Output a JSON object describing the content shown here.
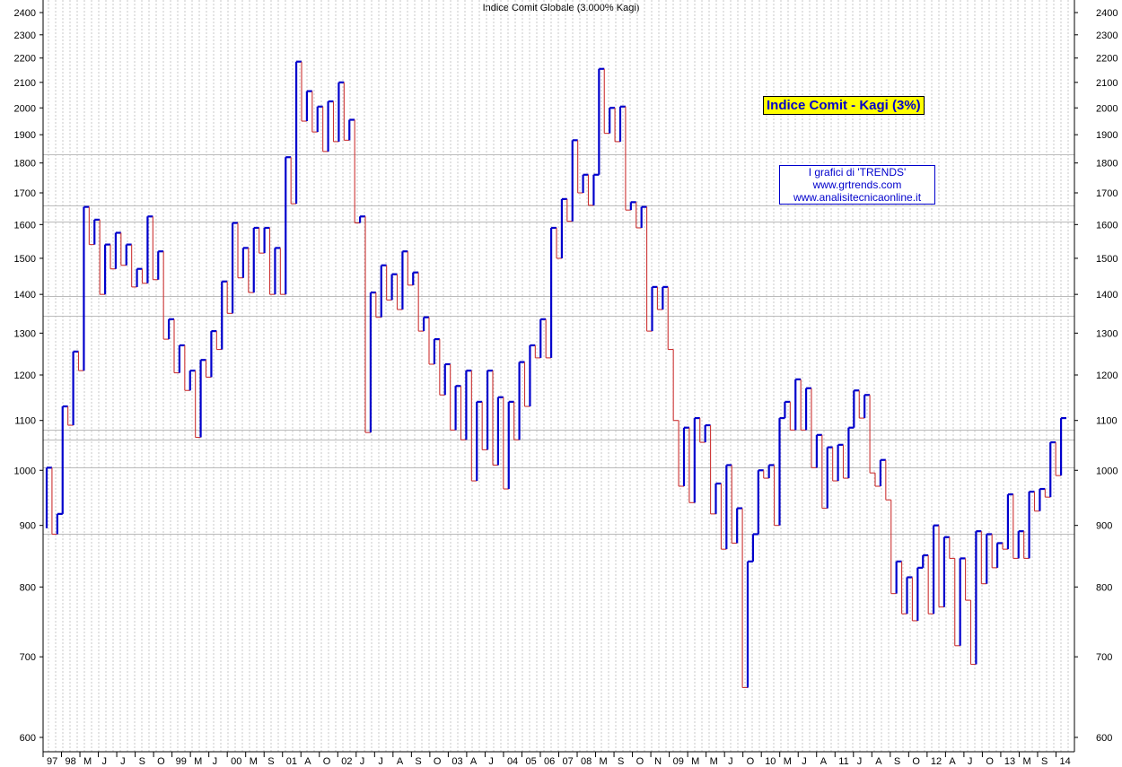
{
  "chart_data": {
    "type": "line",
    "chart_style": "kagi",
    "title": "Indice Comit Globale (3.000% Kagi)",
    "annotation_box": "Indice Comit - Kagi (3%)",
    "credits": [
      "I grafici di 'TRENDS'",
      "www.grtrends.com",
      "www.analisitecnicaonline.it"
    ],
    "y_scale": "log",
    "ylim": [
      580,
      2450
    ],
    "y_ticks": [
      600,
      700,
      800,
      900,
      1000,
      1100,
      1200,
      1300,
      1400,
      1500,
      1600,
      1700,
      1800,
      1900,
      2000,
      2100,
      2200,
      2300,
      2400
    ],
    "y_ticks_labeled_left": [
      600,
      700,
      800,
      900,
      1000,
      1100,
      1200,
      1300,
      1400,
      1500,
      1600,
      1700,
      1800,
      1900,
      2000,
      2100,
      2200,
      2300,
      2400
    ],
    "y_ticks_labeled_right": [
      600,
      700,
      800,
      900,
      1000,
      1100,
      1200,
      1300,
      1400,
      1500,
      1600,
      1700,
      1800,
      1900,
      2000,
      2100,
      2200,
      2300,
      2400
    ],
    "horizontal_lines": [
      885,
      1005,
      1060,
      1080,
      1345,
      1395,
      1610,
      1660,
      1830
    ],
    "x_labels": [
      "97",
      "98",
      "M",
      "J",
      "J",
      "S",
      "O",
      "99",
      "M",
      "J",
      "00",
      "M",
      "S",
      "01",
      "A",
      "O",
      "02",
      "J",
      "J",
      "A",
      "S",
      "O",
      "03",
      "A",
      "J",
      "04",
      "05",
      "06",
      "07",
      "08",
      "M",
      "S",
      "O",
      "N",
      "09",
      "M",
      "M",
      "J",
      "O",
      "10",
      "M",
      "J",
      "A",
      "11",
      "J",
      "A",
      "S",
      "O",
      "12",
      "A",
      "J",
      "O",
      "13",
      "M",
      "S",
      "14"
    ],
    "up_color": "#0000cc",
    "down_color": "#cc3333",
    "kagi_reversal_values": [
      895,
      1005,
      885,
      920,
      1130,
      1090,
      1255,
      1210,
      1655,
      1540,
      1615,
      1400,
      1540,
      1470,
      1575,
      1480,
      1540,
      1420,
      1470,
      1430,
      1625,
      1440,
      1520,
      1285,
      1335,
      1205,
      1270,
      1165,
      1210,
      1065,
      1235,
      1195,
      1305,
      1260,
      1435,
      1350,
      1605,
      1445,
      1530,
      1405,
      1590,
      1515,
      1590,
      1400,
      1530,
      1400,
      1820,
      1665,
      2185,
      1950,
      2065,
      1910,
      2005,
      1840,
      2025,
      1875,
      2100,
      1880,
      1955,
      1605,
      1625,
      1075,
      1405,
      1340,
      1480,
      1385,
      1455,
      1360,
      1520,
      1425,
      1460,
      1305,
      1340,
      1225,
      1285,
      1155,
      1225,
      1080,
      1175,
      1060,
      1210,
      980,
      1140,
      1040,
      1210,
      1010,
      1150,
      965,
      1140,
      1060,
      1230,
      1130,
      1270,
      1240,
      1335,
      1240,
      1590,
      1500,
      1680,
      1610,
      1880,
      1700,
      1760,
      1660,
      1760,
      2155,
      1905,
      2000,
      1875,
      2005,
      1645,
      1670,
      1590,
      1655,
      1305,
      1420,
      1360,
      1420,
      1260,
      1100,
      970,
      1085,
      940,
      1105,
      1055,
      1090,
      920,
      975,
      860,
      1010,
      870,
      930,
      660,
      840,
      885,
      1000,
      985,
      1010,
      900,
      1105,
      1140,
      1080,
      1190,
      1080,
      1170,
      1005,
      1070,
      930,
      1045,
      980,
      1050,
      985,
      1085,
      1165,
      1105,
      1155,
      995,
      970,
      1020,
      945,
      790,
      840,
      760,
      815,
      750,
      830,
      850,
      760,
      900,
      770,
      880,
      845,
      715,
      845,
      780,
      690,
      890,
      805,
      885,
      830,
      870,
      860,
      955,
      845,
      890,
      845,
      960,
      925,
      965,
      950,
      1055,
      990,
      1105
    ]
  }
}
